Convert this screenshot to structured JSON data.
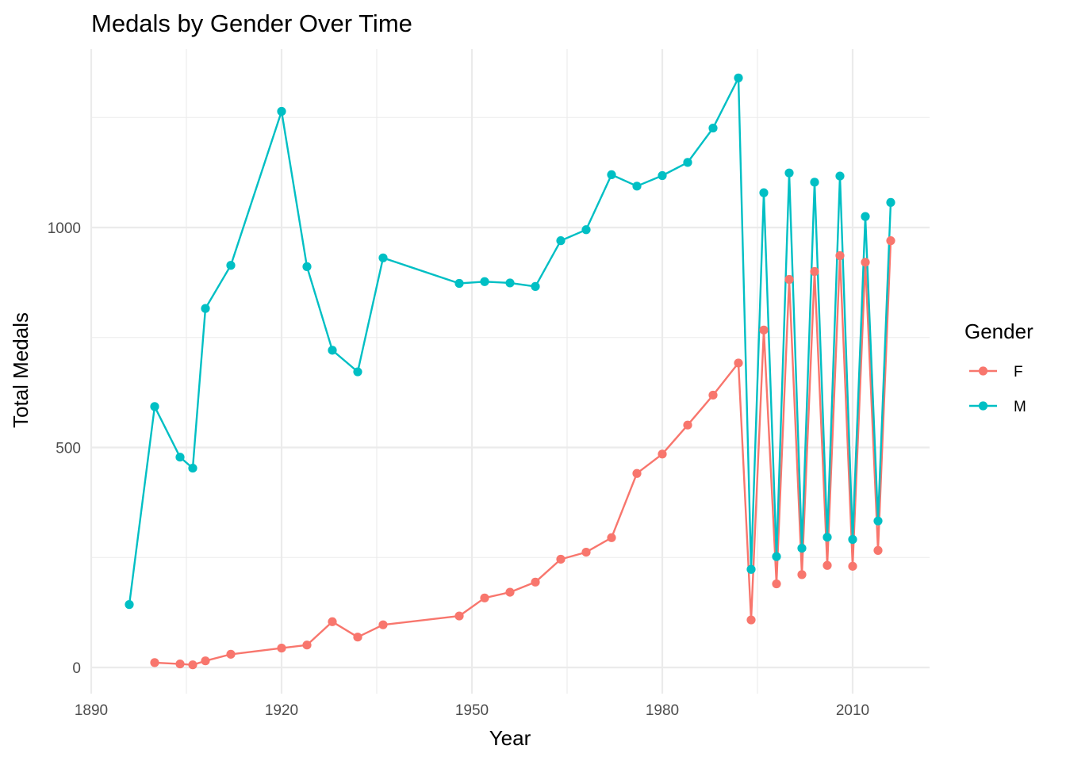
{
  "chart_data": {
    "type": "line",
    "title": "Medals by Gender Over Time",
    "xlabel": "Year",
    "ylabel": "Total Medals",
    "xlim": [
      1890,
      2022
    ],
    "ylim": [
      -50,
      1380
    ],
    "x_ticks": [
      1890,
      1920,
      1950,
      1980,
      2010
    ],
    "y_ticks": [
      0,
      500,
      1000
    ],
    "grid": true,
    "legend": {
      "title": "Gender",
      "placement": "right"
    },
    "series": [
      {
        "name": "F",
        "color": "#F8766D",
        "points": [
          [
            1900,
            11
          ],
          [
            1904,
            8
          ],
          [
            1906,
            6
          ],
          [
            1908,
            15
          ],
          [
            1912,
            30
          ],
          [
            1920,
            44
          ],
          [
            1924,
            51
          ],
          [
            1928,
            104
          ],
          [
            1932,
            69
          ],
          [
            1936,
            97
          ],
          [
            1948,
            117
          ],
          [
            1952,
            158
          ],
          [
            1956,
            171
          ],
          [
            1960,
            194
          ],
          [
            1964,
            246
          ],
          [
            1968,
            262
          ],
          [
            1972,
            295
          ],
          [
            1976,
            441
          ],
          [
            1980,
            485
          ],
          [
            1984,
            551
          ],
          [
            1988,
            619
          ],
          [
            1992,
            692
          ],
          [
            1994,
            108
          ],
          [
            1996,
            767
          ],
          [
            1998,
            190
          ],
          [
            2000,
            882
          ],
          [
            2002,
            211
          ],
          [
            2004,
            900
          ],
          [
            2006,
            232
          ],
          [
            2008,
            936
          ],
          [
            2010,
            230
          ],
          [
            2012,
            921
          ],
          [
            2014,
            266
          ],
          [
            2016,
            970
          ]
        ]
      },
      {
        "name": "M",
        "color": "#00BFC4",
        "points": [
          [
            1896,
            143
          ],
          [
            1900,
            593
          ],
          [
            1904,
            478
          ],
          [
            1906,
            453
          ],
          [
            1908,
            816
          ],
          [
            1912,
            914
          ],
          [
            1920,
            1264
          ],
          [
            1924,
            911
          ],
          [
            1928,
            721
          ],
          [
            1932,
            672
          ],
          [
            1936,
            931
          ],
          [
            1948,
            873
          ],
          [
            1952,
            877
          ],
          [
            1956,
            874
          ],
          [
            1960,
            866
          ],
          [
            1964,
            970
          ],
          [
            1968,
            995
          ],
          [
            1972,
            1120
          ],
          [
            1976,
            1094
          ],
          [
            1980,
            1118
          ],
          [
            1984,
            1148
          ],
          [
            1988,
            1226
          ],
          [
            1992,
            1340
          ],
          [
            1994,
            223
          ],
          [
            1996,
            1079
          ],
          [
            1998,
            252
          ],
          [
            2000,
            1124
          ],
          [
            2002,
            271
          ],
          [
            2004,
            1103
          ],
          [
            2006,
            296
          ],
          [
            2008,
            1117
          ],
          [
            2010,
            291
          ],
          [
            2012,
            1025
          ],
          [
            2014,
            333
          ],
          [
            2016,
            1057
          ]
        ]
      }
    ]
  }
}
